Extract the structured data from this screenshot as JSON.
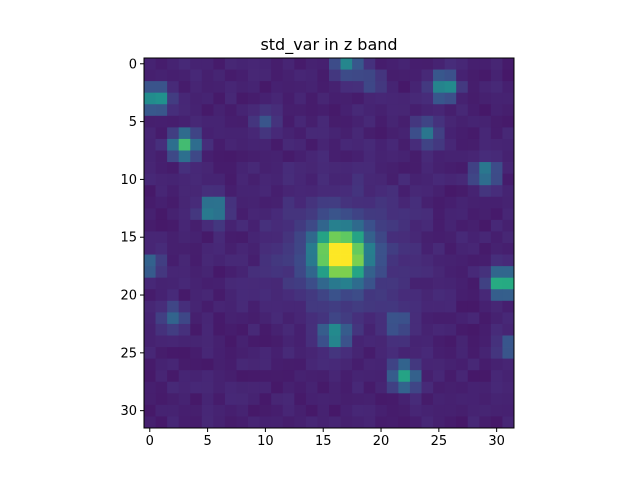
{
  "chart_data": {
    "type": "heatmap",
    "title": "std_var in z band",
    "xlabel": "",
    "ylabel": "",
    "grid": false,
    "legend": "none",
    "colormap": "viridis",
    "shape": [
      32,
      32
    ],
    "x_range": [
      -0.5,
      31.5
    ],
    "y_range": [
      -0.5,
      31.5
    ],
    "y_axis": "inverted (0 at top)",
    "x_ticks": [
      0,
      5,
      10,
      15,
      20,
      25,
      30
    ],
    "y_ticks": [
      0,
      5,
      10,
      15,
      20,
      25,
      30
    ],
    "value_scale": "relative intensity 0-1 (no colorbar shown)",
    "background_level": 0.07,
    "central_source": {
      "x": 16.5,
      "y": 16.5,
      "peak": 1.0,
      "sigma": 1.5,
      "halo_amplitude": 0.12,
      "halo_sigma": 4.0
    },
    "point_sources": [
      {
        "x": 0.5,
        "y": 3.0,
        "peak": 0.5
      },
      {
        "x": 3.0,
        "y": 7.0,
        "peak": 0.6
      },
      {
        "x": 5.5,
        "y": 12.5,
        "peak": 0.45
      },
      {
        "x": 17.0,
        "y": 0.0,
        "peak": 0.35
      },
      {
        "x": 25.5,
        "y": 2.0,
        "peak": 0.45
      },
      {
        "x": 24.0,
        "y": 6.0,
        "peak": 0.28
      },
      {
        "x": 29.0,
        "y": 9.5,
        "peak": 0.35
      },
      {
        "x": 30.5,
        "y": 19.0,
        "peak": 0.65
      },
      {
        "x": 16.0,
        "y": 23.5,
        "peak": 0.45
      },
      {
        "x": 22.0,
        "y": 27.0,
        "peak": 0.5
      },
      {
        "x": 2.0,
        "y": 22.0,
        "peak": 0.25
      },
      {
        "x": 0.0,
        "y": 17.5,
        "peak": 0.25
      },
      {
        "x": 31.0,
        "y": 24.5,
        "peak": 0.2
      },
      {
        "x": 21.5,
        "y": 22.5,
        "peak": 0.2
      },
      {
        "x": 10.0,
        "y": 5.0,
        "peak": 0.15
      },
      {
        "x": 19.0,
        "y": 1.5,
        "peak": 0.15
      }
    ]
  }
}
